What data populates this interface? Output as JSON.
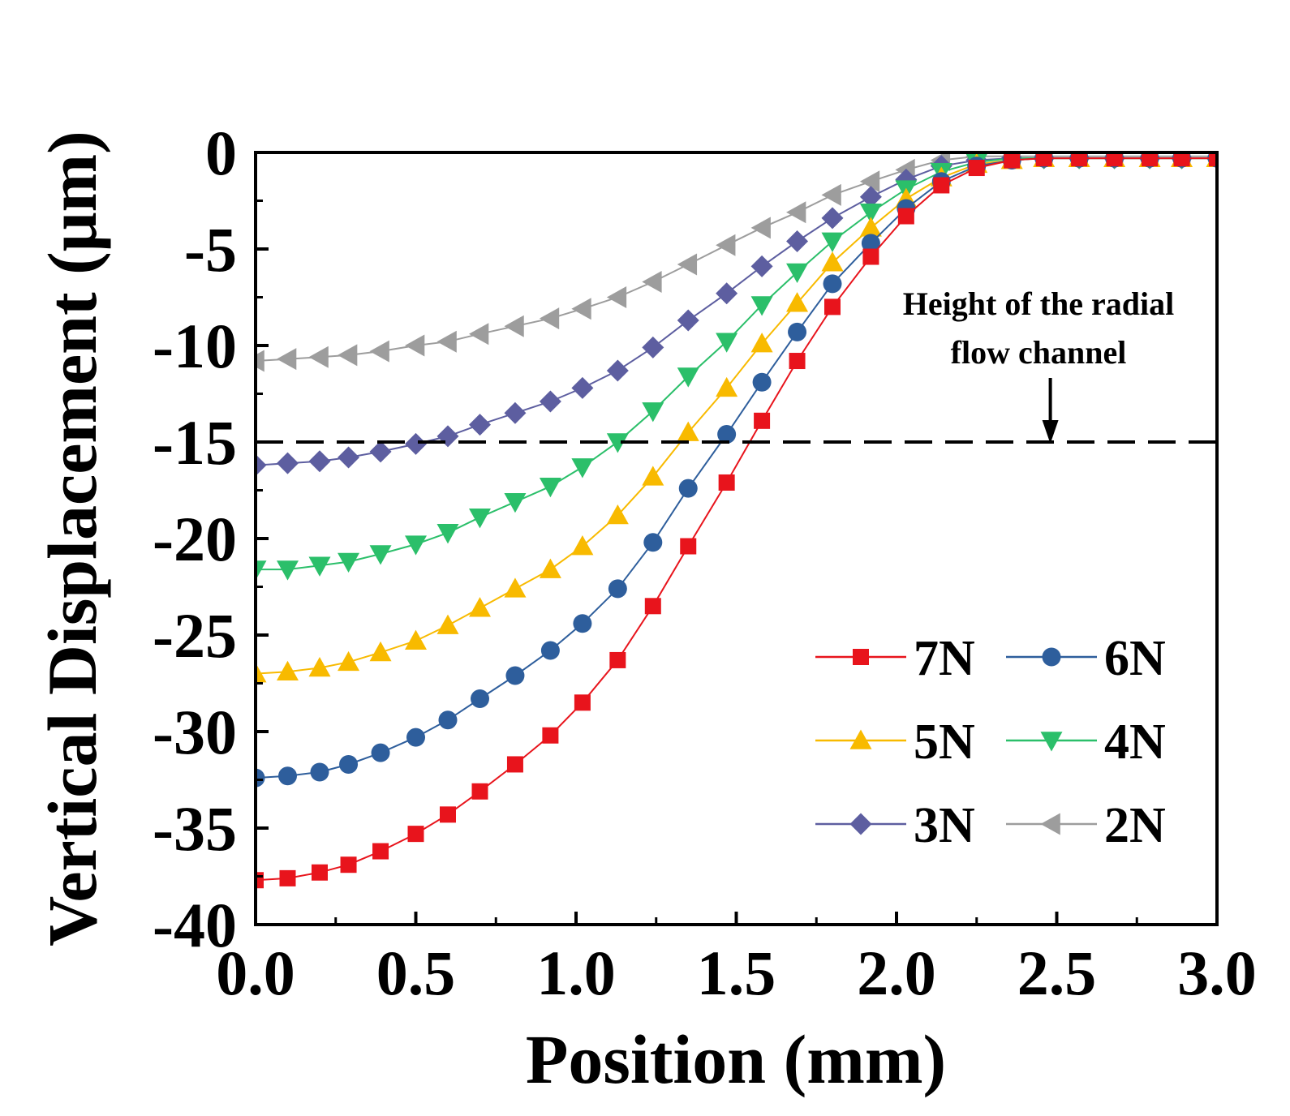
{
  "chart_data": {
    "type": "line",
    "title": "",
    "xlabel": "Position (mm)",
    "ylabel": "Vertical Displacement (μm)",
    "xlim": [
      0.0,
      3.0
    ],
    "ylim": [
      -40,
      0
    ],
    "xticks": [
      0.0,
      0.5,
      1.0,
      1.5,
      2.0,
      2.5,
      3.0
    ],
    "xtick_labels": [
      "0.0",
      "0.5",
      "1.0",
      "1.5",
      "2.0",
      "2.5",
      "3.0"
    ],
    "yticks": [
      0,
      -5,
      -10,
      -15,
      -20,
      -25,
      -30,
      -35,
      -40
    ],
    "ytick_labels": [
      "0",
      "-5",
      "-10",
      "-15",
      "-20",
      "-25",
      "-30",
      "-35",
      "-40"
    ],
    "grid": false,
    "legend_position": "bottom-right",
    "x": [
      0.0,
      0.1,
      0.2,
      0.29,
      0.39,
      0.5,
      0.6,
      0.7,
      0.81,
      0.92,
      1.02,
      1.13,
      1.24,
      1.35,
      1.47,
      1.58,
      1.69,
      1.8,
      1.92,
      2.03,
      2.14,
      2.25,
      2.36,
      2.46,
      2.57,
      2.68,
      2.79,
      2.89,
      3.0
    ],
    "series": [
      {
        "name": "7N",
        "color": "#e8141c",
        "marker": "square",
        "values": [
          -37.7,
          -37.6,
          -37.3,
          -36.9,
          -36.2,
          -35.3,
          -34.3,
          -33.1,
          -31.7,
          -30.2,
          -28.5,
          -26.3,
          -23.5,
          -20.4,
          -17.1,
          -13.9,
          -10.8,
          -8.0,
          -5.4,
          -3.3,
          -1.7,
          -0.8,
          -0.4,
          -0.3,
          -0.3,
          -0.3,
          -0.3,
          -0.3,
          -0.3
        ]
      },
      {
        "name": "6N",
        "color": "#2e5e9c",
        "marker": "circle",
        "values": [
          -32.4,
          -32.3,
          -32.1,
          -31.7,
          -31.1,
          -30.3,
          -29.4,
          -28.3,
          -27.1,
          -25.8,
          -24.4,
          -22.6,
          -20.2,
          -17.4,
          -14.6,
          -11.9,
          -9.3,
          -6.8,
          -4.7,
          -2.9,
          -1.5,
          -0.7,
          -0.4,
          -0.3,
          -0.3,
          -0.3,
          -0.3,
          -0.3,
          -0.3
        ]
      },
      {
        "name": "5N",
        "color": "#f8ba00",
        "marker": "triangle-up",
        "values": [
          -27.0,
          -26.9,
          -26.7,
          -26.4,
          -25.9,
          -25.3,
          -24.5,
          -23.6,
          -22.6,
          -21.6,
          -20.4,
          -18.8,
          -16.8,
          -14.5,
          -12.2,
          -9.9,
          -7.8,
          -5.7,
          -3.9,
          -2.4,
          -1.3,
          -0.6,
          -0.4,
          -0.3,
          -0.3,
          -0.3,
          -0.3,
          -0.3,
          -0.3
        ]
      },
      {
        "name": "4N",
        "color": "#2bbf6a",
        "marker": "triangle-down",
        "values": [
          -21.6,
          -21.6,
          -21.4,
          -21.2,
          -20.8,
          -20.3,
          -19.7,
          -18.9,
          -18.1,
          -17.3,
          -16.3,
          -15.0,
          -13.4,
          -11.6,
          -9.8,
          -7.9,
          -6.2,
          -4.6,
          -3.1,
          -1.9,
          -1.0,
          -0.5,
          -0.3,
          -0.3,
          -0.3,
          -0.3,
          -0.3,
          -0.3,
          -0.3
        ]
      },
      {
        "name": "3N",
        "color": "#5d5ea0",
        "marker": "diamond",
        "values": [
          -16.2,
          -16.1,
          -16.0,
          -15.8,
          -15.5,
          -15.1,
          -14.7,
          -14.1,
          -13.5,
          -12.9,
          -12.2,
          -11.3,
          -10.1,
          -8.7,
          -7.3,
          -5.9,
          -4.6,
          -3.4,
          -2.3,
          -1.4,
          -0.7,
          -0.4,
          -0.3,
          -0.3,
          -0.3,
          -0.3,
          -0.3,
          -0.3,
          -0.3
        ]
      },
      {
        "name": "2N",
        "color": "#9d9d9d",
        "marker": "triangle-left",
        "values": [
          -10.8,
          -10.7,
          -10.6,
          -10.5,
          -10.3,
          -10.0,
          -9.8,
          -9.4,
          -9.0,
          -8.6,
          -8.1,
          -7.5,
          -6.7,
          -5.8,
          -4.8,
          -3.9,
          -3.1,
          -2.2,
          -1.5,
          -0.9,
          -0.4,
          -0.2,
          -0.2,
          -0.2,
          -0.2,
          -0.2,
          -0.2,
          -0.2,
          -0.2
        ]
      }
    ],
    "reference_line": {
      "y": -15,
      "style": "dashed",
      "color": "#000000"
    },
    "annotation": {
      "lines": [
        "Height of the radial",
        "flow channel"
      ],
      "arrow_x": 2.48
    }
  }
}
